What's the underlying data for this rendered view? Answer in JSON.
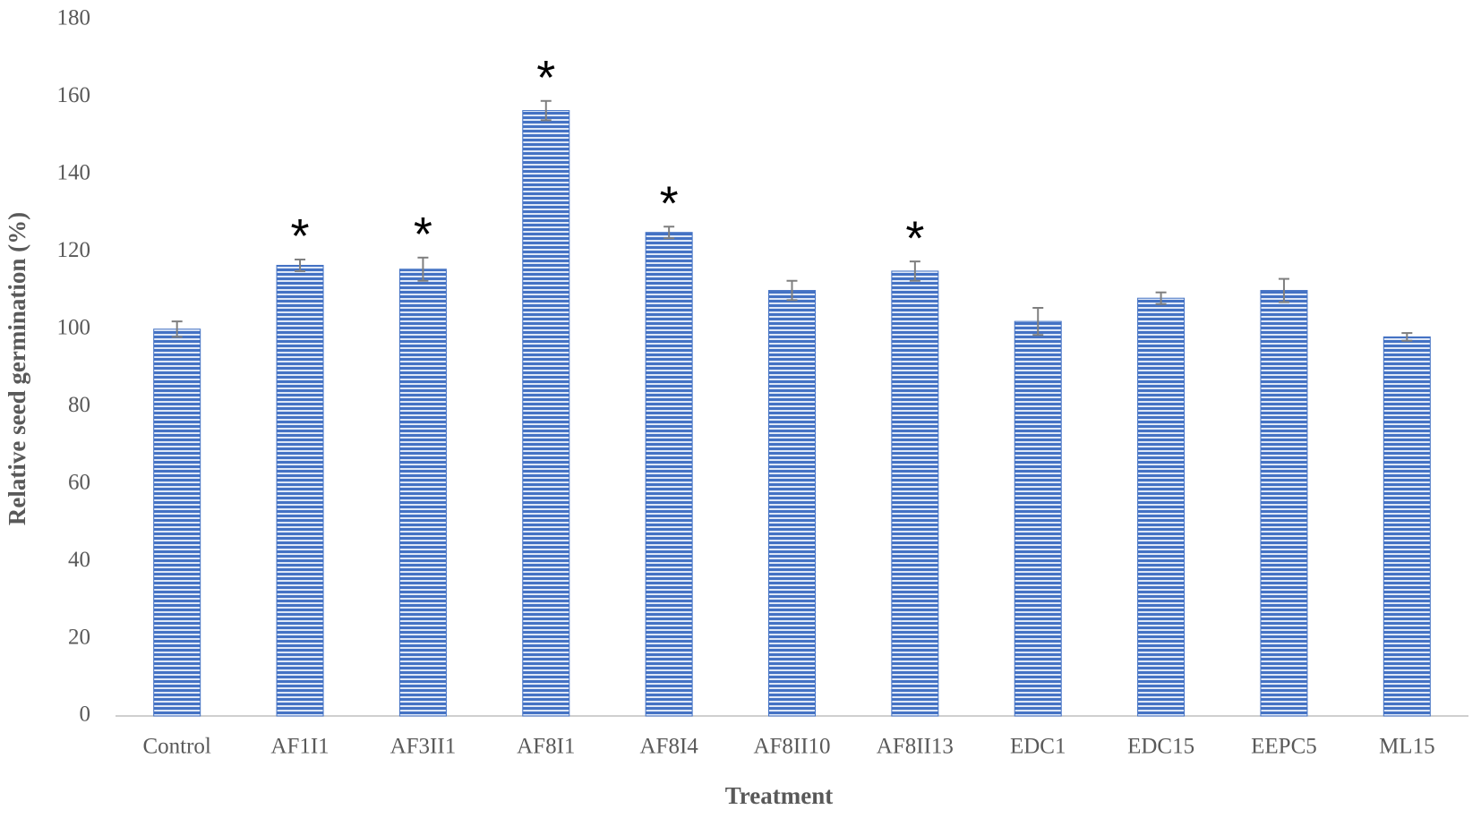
{
  "chart_data": {
    "type": "bar",
    "x_label": "Treatment",
    "y_label": "Relative seed germination (%)",
    "categories": [
      "Control",
      "AF1I1",
      "AF3II1",
      "AF8I1",
      "AF8I4",
      "AF8II10",
      "AF8II13",
      "EDC1",
      "EDC15",
      "EEPC5",
      "ML15"
    ],
    "values": [
      100,
      116.5,
      115.5,
      156.5,
      125,
      110,
      115,
      102,
      108,
      110,
      98
    ],
    "errors": [
      2,
      1.5,
      3,
      2.5,
      1.5,
      2.5,
      2.5,
      3.5,
      1.5,
      3,
      1
    ],
    "annotations": [
      null,
      "*",
      "*",
      "*",
      "*",
      null,
      "*",
      null,
      null,
      null,
      null
    ],
    "color": "#4472c4",
    "ylim": [
      0,
      180
    ],
    "yticks": [
      0,
      20,
      40,
      60,
      80,
      100,
      120,
      140,
      160,
      180
    ],
    "grid": false
  }
}
